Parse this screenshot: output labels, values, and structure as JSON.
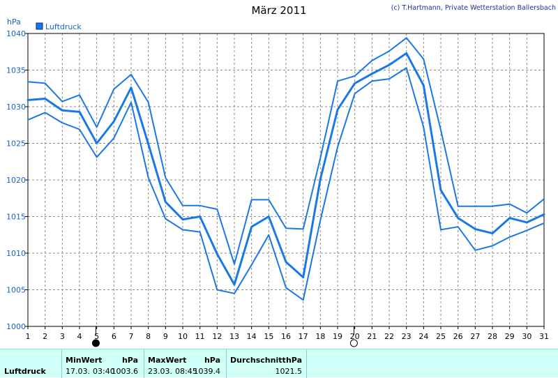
{
  "header": {
    "title": "März 2011",
    "credit": "(c) T.Hartmann, Private Wetterstation Ballersbach"
  },
  "legend": {
    "label": "Luftdruck",
    "color": "#1a78e6"
  },
  "chart_data": {
    "type": "line",
    "title": "März 2011",
    "yunit": "hPa",
    "ylim": [
      1000,
      1040
    ],
    "yticks": [
      "1000",
      "1005",
      "1010",
      "1015",
      "1020",
      "1025",
      "1030",
      "1035",
      "1040"
    ],
    "x": [
      1,
      2,
      3,
      4,
      5,
      6,
      7,
      8,
      9,
      10,
      11,
      12,
      13,
      14,
      15,
      16,
      17,
      18,
      19,
      20,
      21,
      22,
      23,
      24,
      25,
      26,
      27,
      28,
      29,
      30,
      31
    ],
    "grid": true,
    "legend_position": "top-left",
    "moon_markers": [
      {
        "day": 4.95,
        "phase": "new-moon"
      },
      {
        "day": 19.95,
        "phase": "full-moon"
      }
    ],
    "series": [
      {
        "name": "Luftdruck",
        "role": "max",
        "color": "#1a78e6",
        "values": [
          1033.4,
          1033.2,
          1030.7,
          1031.6,
          1027.2,
          1032.4,
          1034.4,
          1030.6,
          1020.3,
          1016.5,
          1016.5,
          1016.0,
          1008.5,
          1017.3,
          1017.3,
          1013.4,
          1013.3,
          1023.0,
          1033.5,
          1034.2,
          1036.3,
          1037.6,
          1039.4,
          1036.5,
          1026.8,
          1016.4,
          1016.4,
          1016.4,
          1016.7,
          1015.5,
          1017.4
        ]
      },
      {
        "name": "Luftdruck",
        "role": "mean",
        "color": "#1a78e6",
        "values": [
          1030.9,
          1031.1,
          1029.5,
          1029.3,
          1025.0,
          1028.0,
          1032.6,
          1024.9,
          1017.0,
          1014.6,
          1015.0,
          1009.9,
          1005.7,
          1013.6,
          1015.0,
          1008.8,
          1006.7,
          1020.1,
          1029.6,
          1033.2,
          1034.5,
          1035.7,
          1037.3,
          1032.9,
          1018.6,
          1014.8,
          1013.3,
          1012.7,
          1014.8,
          1014.2,
          1015.3
        ]
      },
      {
        "name": "Luftdruck",
        "role": "min",
        "color": "#1a78e6",
        "values": [
          1028.2,
          1029.2,
          1027.8,
          1026.9,
          1023.1,
          1025.7,
          1030.6,
          1020.3,
          1014.7,
          1013.2,
          1012.9,
          1005.0,
          1004.5,
          1008.4,
          1012.5,
          1005.3,
          1003.6,
          1014.5,
          1024.5,
          1031.8,
          1033.5,
          1033.8,
          1035.3,
          1027.2,
          1013.2,
          1013.6,
          1010.4,
          1011.0,
          1012.2,
          1013.1,
          1014.1
        ]
      }
    ]
  },
  "stats": {
    "row_label": "Luftdruck",
    "min": {
      "label": "MinWert",
      "unit": "hPa",
      "date": "17.03.",
      "time": "03:40",
      "value": "1003.6"
    },
    "max": {
      "label": "MaxWert",
      "unit": "hPa",
      "date": "23.03.",
      "time": "08:45",
      "value": "1039.4"
    },
    "avg": {
      "label": "Durchschnitt",
      "unit": "hPa",
      "value": "1021.5"
    }
  }
}
